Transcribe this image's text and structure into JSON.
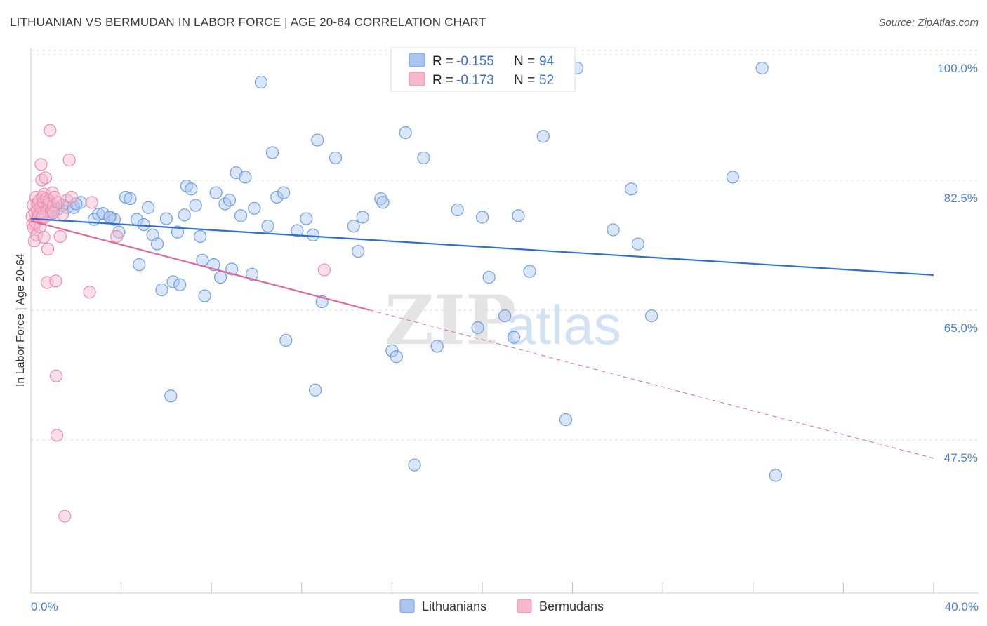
{
  "title": "LITHUANIAN VS BERMUDAN IN LABOR FORCE | AGE 20-64 CORRELATION CHART",
  "source": "Source: ZipAtlas.com",
  "watermark": {
    "zip": "ZIP",
    "atlas": "atlas"
  },
  "colors": {
    "blue_fill": "#aac6f0",
    "blue_stroke": "#6f9fe0",
    "blue_line": "#2f6fcf",
    "pink_fill": "#f6b8cc",
    "pink_stroke": "#ec8fad",
    "pink_line": "#e0679a",
    "grid": "#dddddd",
    "tick_text": "#4a7fd0"
  },
  "legend": {
    "rows": [
      {
        "r_label": "R =",
        "r_value": "-0.155",
        "n_label": "N =",
        "n_value": "94"
      },
      {
        "r_label": "R =",
        "r_value": "-0.173",
        "n_label": "N =",
        "n_value": "52"
      }
    ]
  },
  "chart_data": {
    "type": "scatter",
    "title": "LITHUANIAN VS BERMUDAN IN LABOR FORCE | AGE 20-64 CORRELATION CHART",
    "xlabel": "",
    "ylabel": "In Labor Force | Age 20-64",
    "xlim": [
      0,
      40
    ],
    "ylim": [
      32,
      102
    ],
    "x_tick_labels": [
      "0.0%",
      "40.0%"
    ],
    "y_ticks": [
      47.5,
      65.0,
      82.5,
      100.0
    ],
    "y_tick_labels": [
      "47.5%",
      "65.0%",
      "82.5%",
      "100.0%"
    ],
    "grid": true,
    "legend_position": "top-center",
    "series": [
      {
        "name": "Lithuanians",
        "r": -0.155,
        "n": 94,
        "trend": {
          "x0": 0,
          "y0": 79.7,
          "x1": 40,
          "y1": 72.1
        },
        "points": [
          [
            0.3,
            80.3
          ],
          [
            0.5,
            81.0
          ],
          [
            0.6,
            80.6
          ],
          [
            0.8,
            80.8
          ],
          [
            0.9,
            81.2
          ],
          [
            1.0,
            80.5
          ],
          [
            1.2,
            81.0
          ],
          [
            1.4,
            81.5
          ],
          [
            1.6,
            81.2
          ],
          [
            1.9,
            81.2
          ],
          [
            2.2,
            81.9
          ],
          [
            2.8,
            79.6
          ],
          [
            3.0,
            80.3
          ],
          [
            3.2,
            80.4
          ],
          [
            3.5,
            79.9
          ],
          [
            3.7,
            79.6
          ],
          [
            3.9,
            77.9
          ],
          [
            4.2,
            82.6
          ],
          [
            4.4,
            82.4
          ],
          [
            4.7,
            79.6
          ],
          [
            4.8,
            73.5
          ],
          [
            5.0,
            78.9
          ],
          [
            5.2,
            81.2
          ],
          [
            5.4,
            77.5
          ],
          [
            5.6,
            76.3
          ],
          [
            5.8,
            70.1
          ],
          [
            6.0,
            79.7
          ],
          [
            6.2,
            55.8
          ],
          [
            6.3,
            71.2
          ],
          [
            6.5,
            77.9
          ],
          [
            6.6,
            70.8
          ],
          [
            6.9,
            84.1
          ],
          [
            7.1,
            83.7
          ],
          [
            7.3,
            81.5
          ],
          [
            7.5,
            77.3
          ],
          [
            7.6,
            74.1
          ],
          [
            7.7,
            69.3
          ],
          [
            8.1,
            73.5
          ],
          [
            8.2,
            83.2
          ],
          [
            8.4,
            71.8
          ],
          [
            8.6,
            81.7
          ],
          [
            8.8,
            82.2
          ],
          [
            8.9,
            72.9
          ],
          [
            9.1,
            85.9
          ],
          [
            9.3,
            80.1
          ],
          [
            9.5,
            85.3
          ],
          [
            9.8,
            72.2
          ],
          [
            9.9,
            81.1
          ],
          [
            10.2,
            98.1
          ],
          [
            10.5,
            78.7
          ],
          [
            10.7,
            88.6
          ],
          [
            10.9,
            82.6
          ],
          [
            11.2,
            83.2
          ],
          [
            11.3,
            63.3
          ],
          [
            11.8,
            78.1
          ],
          [
            12.2,
            79.7
          ],
          [
            12.5,
            77.5
          ],
          [
            12.6,
            56.6
          ],
          [
            12.7,
            90.3
          ],
          [
            12.9,
            68.5
          ],
          [
            13.5,
            87.9
          ],
          [
            14.3,
            78.7
          ],
          [
            14.5,
            75.3
          ],
          [
            14.7,
            79.9
          ],
          [
            15.5,
            82.4
          ],
          [
            15.6,
            81.9
          ],
          [
            16.0,
            61.9
          ],
          [
            16.2,
            61.1
          ],
          [
            16.6,
            91.3
          ],
          [
            17.0,
            46.5
          ],
          [
            17.4,
            87.9
          ],
          [
            18.0,
            62.5
          ],
          [
            18.9,
            80.9
          ],
          [
            19.8,
            65.0
          ],
          [
            20.0,
            79.9
          ],
          [
            20.3,
            71.8
          ],
          [
            21.0,
            66.6
          ],
          [
            21.4,
            63.7
          ],
          [
            21.6,
            80.1
          ],
          [
            22.1,
            72.6
          ],
          [
            22.7,
            90.8
          ],
          [
            23.7,
            52.6
          ],
          [
            24.2,
            100.0
          ],
          [
            25.8,
            78.2
          ],
          [
            26.6,
            83.7
          ],
          [
            26.9,
            76.3
          ],
          [
            27.5,
            66.6
          ],
          [
            31.1,
            85.3
          ],
          [
            32.4,
            100.0
          ],
          [
            33.0,
            45.1
          ],
          [
            3.5,
            79.9
          ],
          [
            6.8,
            80.2
          ],
          [
            1.0,
            80.8
          ],
          [
            2.0,
            81.7
          ]
        ]
      },
      {
        "name": "Bermudans",
        "r": -0.173,
        "n": 52,
        "trend": {
          "x0": 0,
          "y0": 79.4,
          "x1": 15.0,
          "y1": 67.4
        },
        "trend_ext": {
          "x0": 15.0,
          "y0": 67.4,
          "x1": 40,
          "y1": 47.4
        },
        "points": [
          [
            0.05,
            80.0
          ],
          [
            0.08,
            79.0
          ],
          [
            0.1,
            81.5
          ],
          [
            0.12,
            78.5
          ],
          [
            0.15,
            76.7
          ],
          [
            0.18,
            80.5
          ],
          [
            0.2,
            79.2
          ],
          [
            0.22,
            82.6
          ],
          [
            0.25,
            77.5
          ],
          [
            0.28,
            80.9
          ],
          [
            0.3,
            81.7
          ],
          [
            0.32,
            79.9
          ],
          [
            0.35,
            82.1
          ],
          [
            0.38,
            80.3
          ],
          [
            0.4,
            78.6
          ],
          [
            0.42,
            81.2
          ],
          [
            0.45,
            87.0
          ],
          [
            0.48,
            84.9
          ],
          [
            0.5,
            79.7
          ],
          [
            0.52,
            82.6
          ],
          [
            0.55,
            81.9
          ],
          [
            0.58,
            77.2
          ],
          [
            0.6,
            83.0
          ],
          [
            0.62,
            79.9
          ],
          [
            0.65,
            85.2
          ],
          [
            0.68,
            82.4
          ],
          [
            0.7,
            80.8
          ],
          [
            0.72,
            71.1
          ],
          [
            0.75,
            75.6
          ],
          [
            0.78,
            81.7
          ],
          [
            0.8,
            82.2
          ],
          [
            0.85,
            91.6
          ],
          [
            0.9,
            80.6
          ],
          [
            0.95,
            83.2
          ],
          [
            1.0,
            81.5
          ],
          [
            1.05,
            82.6
          ],
          [
            1.1,
            71.3
          ],
          [
            1.12,
            58.5
          ],
          [
            1.15,
            50.5
          ],
          [
            1.2,
            81.9
          ],
          [
            1.3,
            77.3
          ],
          [
            1.4,
            80.3
          ],
          [
            1.5,
            39.6
          ],
          [
            1.6,
            82.2
          ],
          [
            1.7,
            87.6
          ],
          [
            1.8,
            82.6
          ],
          [
            2.6,
            69.8
          ],
          [
            2.7,
            81.9
          ],
          [
            3.8,
            77.3
          ],
          [
            13.0,
            72.8
          ],
          [
            1.0,
            80.5
          ],
          [
            0.5,
            80.0
          ]
        ]
      }
    ]
  }
}
